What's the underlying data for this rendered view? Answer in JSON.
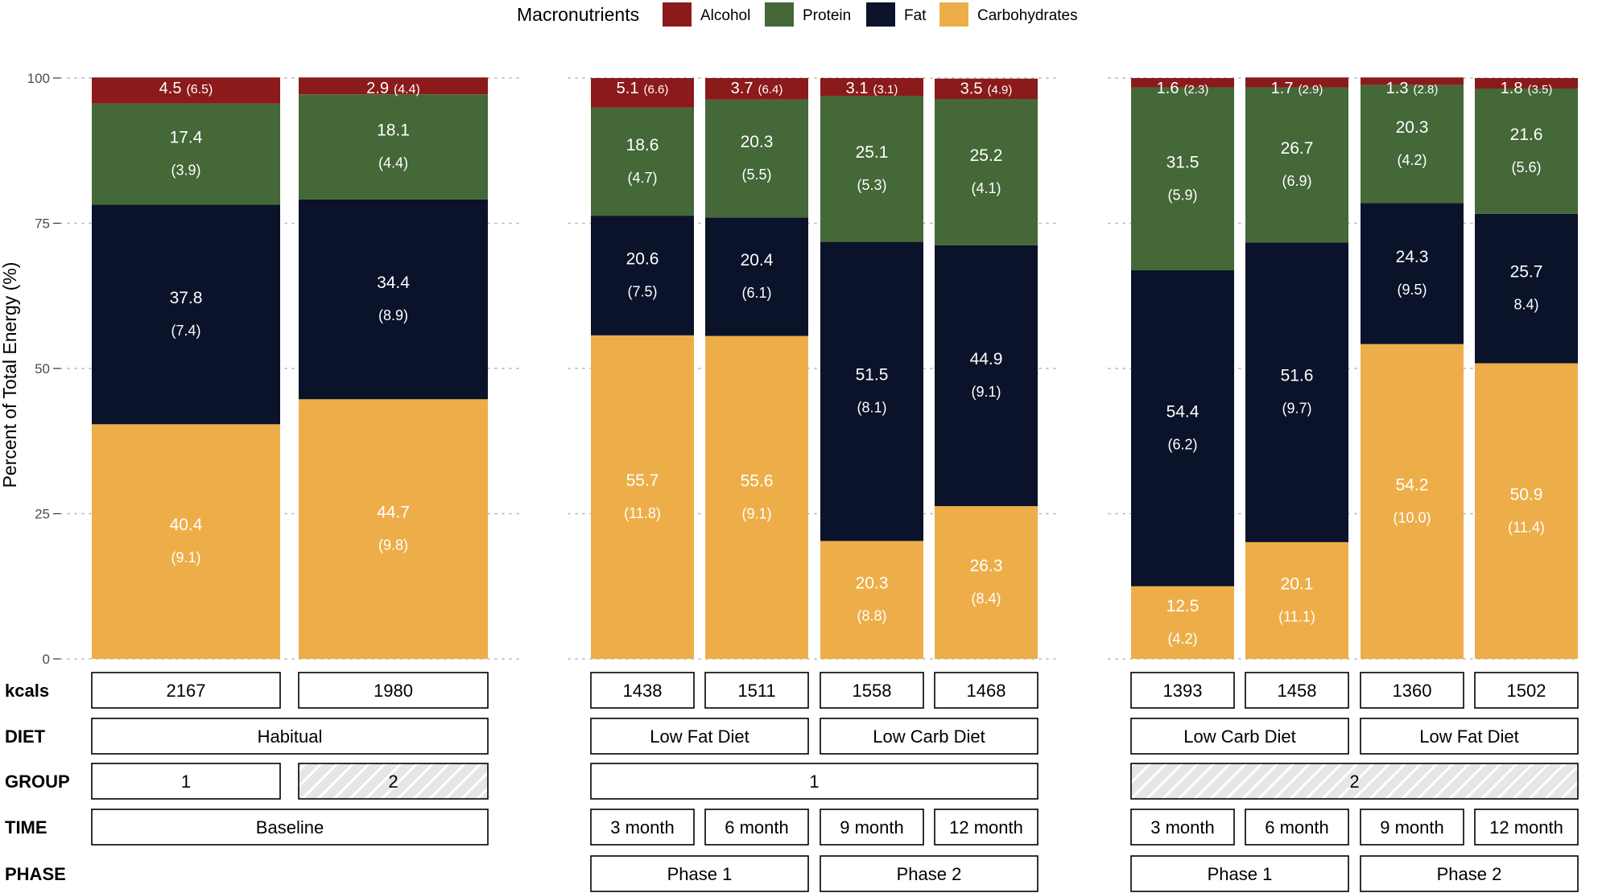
{
  "chart_data": {
    "type": "bar",
    "stacked": true,
    "ylabel": "Percent of Total Energy (%)",
    "ylim": [
      0,
      100
    ],
    "yticks": [
      "0",
      "25",
      "50",
      "75",
      "100"
    ],
    "legend": {
      "title": "Macronutrients",
      "position": "top",
      "items": [
        {
          "name": "Alcohol",
          "color": "#8b1a1a"
        },
        {
          "name": "Protein",
          "color": "#446838"
        },
        {
          "name": "Fat",
          "color": "#0a1329"
        },
        {
          "name": "Carbohydrates",
          "color": "#edae49"
        }
      ]
    },
    "panels": [
      {
        "bars": [
          {
            "carb": 40.4,
            "carb_sd": "(9.1)",
            "fat": 37.8,
            "fat_sd": "(7.4)",
            "protein": 17.4,
            "protein_sd": "(3.9)",
            "alcohol": 4.5,
            "alcohol_sd": "(6.5)"
          },
          {
            "carb": 44.7,
            "carb_sd": "(9.8)",
            "fat": 34.4,
            "fat_sd": "(8.9)",
            "protein": 18.1,
            "protein_sd": "(4.4)",
            "alcohol": 2.9,
            "alcohol_sd": "(4.4)"
          }
        ]
      },
      {
        "bars": [
          {
            "carb": 55.7,
            "carb_sd": "(11.8)",
            "fat": 20.6,
            "fat_sd": "(7.5)",
            "protein": 18.6,
            "protein_sd": "(4.7)",
            "alcohol": 5.1,
            "alcohol_sd": "(6.6)"
          },
          {
            "carb": 55.6,
            "carb_sd": "(9.1)",
            "fat": 20.4,
            "fat_sd": "(6.1)",
            "protein": 20.3,
            "protein_sd": "(5.5)",
            "alcohol": 3.7,
            "alcohol_sd": "(6.4)"
          },
          {
            "carb": 20.3,
            "carb_sd": "(8.8)",
            "fat": 51.5,
            "fat_sd": "(8.1)",
            "protein": 25.1,
            "protein_sd": "(5.3)",
            "alcohol": 3.1,
            "alcohol_sd": "(3.1)"
          },
          {
            "carb": 26.3,
            "carb_sd": "(8.4)",
            "fat": 44.9,
            "fat_sd": "(9.1)",
            "protein": 25.2,
            "protein_sd": "(4.1)",
            "alcohol": 3.5,
            "alcohol_sd": "(4.9)"
          }
        ]
      },
      {
        "bars": [
          {
            "carb": 12.5,
            "carb_sd": "(4.2)",
            "fat": 54.4,
            "fat_sd": "(6.2)",
            "protein": 31.5,
            "protein_sd": "(5.9)",
            "alcohol": 1.6,
            "alcohol_sd": "(2.3)"
          },
          {
            "carb": 20.1,
            "carb_sd": "(11.1)",
            "fat": 51.6,
            "fat_sd": "(9.7)",
            "protein": 26.7,
            "protein_sd": "(6.9)",
            "alcohol": 1.7,
            "alcohol_sd": "(2.9)"
          },
          {
            "carb": 54.2,
            "carb_sd": "(10.0)",
            "fat": 24.3,
            "fat_sd": "(9.5)",
            "protein": 20.3,
            "protein_sd": "(4.2)",
            "alcohol": 1.3,
            "alcohol_sd": "(2.8)"
          },
          {
            "carb": 50.9,
            "carb_sd": "(11.4)",
            "fat": 25.7,
            "fat_sd": "8.4)",
            "protein": 21.6,
            "protein_sd": "(5.6)",
            "alcohol": 1.8,
            "alcohol_sd": "(3.5)"
          }
        ]
      }
    ],
    "table": {
      "row_labels": [
        "kcals",
        "DIET",
        "GROUP",
        "TIME",
        "PHASE"
      ],
      "panels": [
        {
          "kcals": [
            {
              "span": 1,
              "text": "2167"
            },
            {
              "span": 1,
              "text": "1980"
            }
          ],
          "diet": [
            {
              "span": 2,
              "text": "Habitual"
            }
          ],
          "group": [
            {
              "span": 1,
              "text": "1",
              "hatched": false
            },
            {
              "span": 1,
              "text": "2",
              "hatched": true
            }
          ],
          "time": [
            {
              "span": 2,
              "text": "Baseline"
            }
          ],
          "phase": []
        },
        {
          "kcals": [
            {
              "span": 1,
              "text": "1438"
            },
            {
              "span": 1,
              "text": "1511"
            },
            {
              "span": 1,
              "text": "1558"
            },
            {
              "span": 1,
              "text": "1468"
            }
          ],
          "diet": [
            {
              "span": 2,
              "text": "Low Fat Diet"
            },
            {
              "span": 2,
              "text": "Low Carb Diet"
            }
          ],
          "group": [
            {
              "span": 4,
              "text": "1",
              "hatched": false
            }
          ],
          "time": [
            {
              "span": 1,
              "text": "3 month"
            },
            {
              "span": 1,
              "text": "6 month"
            },
            {
              "span": 1,
              "text": "9 month"
            },
            {
              "span": 1,
              "text": "12 month"
            }
          ],
          "phase": [
            {
              "span": 2,
              "text": "Phase 1"
            },
            {
              "span": 2,
              "text": "Phase 2"
            }
          ]
        },
        {
          "kcals": [
            {
              "span": 1,
              "text": "1393"
            },
            {
              "span": 1,
              "text": "1458"
            },
            {
              "span": 1,
              "text": "1360"
            },
            {
              "span": 1,
              "text": "1502"
            }
          ],
          "diet": [
            {
              "span": 2,
              "text": "Low Carb Diet"
            },
            {
              "span": 2,
              "text": "Low Fat Diet"
            }
          ],
          "group": [
            {
              "span": 4,
              "text": "2",
              "hatched": true
            }
          ],
          "time": [
            {
              "span": 1,
              "text": "3 month"
            },
            {
              "span": 1,
              "text": "6 month"
            },
            {
              "span": 1,
              "text": "9 month"
            },
            {
              "span": 1,
              "text": "12 month"
            }
          ],
          "phase": [
            {
              "span": 2,
              "text": "Phase 1"
            },
            {
              "span": 2,
              "text": "Phase 2"
            }
          ]
        }
      ]
    }
  }
}
